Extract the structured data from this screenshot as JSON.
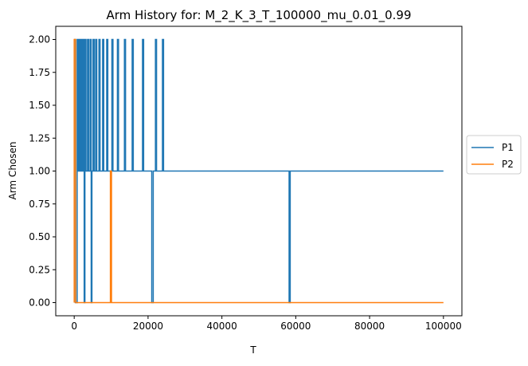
{
  "chart_data": {
    "type": "line",
    "title": "Arm History for: M_2_K_3_T_100000_mu_0.01_0.99",
    "xlabel": "T",
    "ylabel": "Arm Chosen",
    "xlim": [
      -5000,
      105000
    ],
    "ylim": [
      -0.1,
      2.1
    ],
    "x_ticks": [
      0,
      20000,
      40000,
      60000,
      80000,
      100000
    ],
    "x_tick_labels": [
      "0",
      "20000",
      "40000",
      "60000",
      "80000",
      "100000"
    ],
    "y_ticks": [
      0.0,
      0.25,
      0.5,
      0.75,
      1.0,
      1.25,
      1.5,
      1.75,
      2.0
    ],
    "y_tick_labels": [
      "0.00",
      "0.25",
      "0.50",
      "0.75",
      "1.00",
      "1.25",
      "1.50",
      "1.75",
      "2.00"
    ],
    "grid": false,
    "legend_position": "outside right",
    "series": [
      {
        "name": "P1",
        "color": "#1f77b4",
        "points": [
          [
            0,
            2
          ],
          [
            300,
            2
          ],
          [
            300,
            0
          ],
          [
            800,
            0
          ],
          [
            800,
            2
          ],
          [
            1000,
            2
          ],
          [
            1000,
            1
          ],
          [
            1200,
            1
          ],
          [
            1200,
            2
          ],
          [
            1500,
            2
          ],
          [
            1500,
            1
          ],
          [
            1800,
            1
          ],
          [
            1800,
            2
          ],
          [
            2100,
            2
          ],
          [
            2100,
            1
          ],
          [
            2400,
            1
          ],
          [
            2400,
            2
          ],
          [
            2700,
            2
          ],
          [
            2700,
            0
          ],
          [
            2900,
            0
          ],
          [
            2900,
            2
          ],
          [
            3200,
            2
          ],
          [
            3200,
            1
          ],
          [
            3600,
            1
          ],
          [
            3600,
            2
          ],
          [
            3900,
            2
          ],
          [
            3900,
            1
          ],
          [
            4300,
            1
          ],
          [
            4300,
            2
          ],
          [
            4600,
            2
          ],
          [
            4600,
            0
          ],
          [
            4800,
            0
          ],
          [
            4800,
            1
          ],
          [
            5100,
            1
          ],
          [
            5100,
            2
          ],
          [
            5400,
            2
          ],
          [
            5400,
            1
          ],
          [
            5800,
            1
          ],
          [
            5800,
            2
          ],
          [
            6100,
            2
          ],
          [
            6100,
            1
          ],
          [
            6700,
            1
          ],
          [
            6700,
            2
          ],
          [
            7000,
            2
          ],
          [
            7000,
            1
          ],
          [
            7700,
            1
          ],
          [
            7700,
            2
          ],
          [
            8000,
            2
          ],
          [
            8000,
            1
          ],
          [
            8800,
            1
          ],
          [
            8800,
            2
          ],
          [
            9100,
            2
          ],
          [
            9100,
            1
          ],
          [
            10200,
            1
          ],
          [
            10200,
            2
          ],
          [
            10500,
            2
          ],
          [
            10500,
            1
          ],
          [
            11700,
            1
          ],
          [
            11700,
            2
          ],
          [
            12000,
            2
          ],
          [
            12000,
            1
          ],
          [
            13600,
            1
          ],
          [
            13600,
            2
          ],
          [
            13900,
            2
          ],
          [
            13900,
            1
          ],
          [
            15700,
            1
          ],
          [
            15700,
            2
          ],
          [
            16000,
            2
          ],
          [
            16000,
            1
          ],
          [
            18500,
            1
          ],
          [
            18500,
            2
          ],
          [
            18800,
            2
          ],
          [
            18800,
            1
          ],
          [
            21000,
            1
          ],
          [
            21000,
            0
          ],
          [
            21400,
            0
          ],
          [
            21400,
            1
          ],
          [
            22000,
            1
          ],
          [
            22000,
            2
          ],
          [
            22300,
            2
          ],
          [
            22300,
            1
          ],
          [
            23900,
            1
          ],
          [
            23900,
            2
          ],
          [
            24200,
            2
          ],
          [
            24200,
            1
          ],
          [
            58200,
            1
          ],
          [
            58200,
            0
          ],
          [
            58500,
            0
          ],
          [
            58500,
            1
          ],
          [
            100000,
            1
          ]
        ]
      },
      {
        "name": "P2",
        "color": "#ff7f0e",
        "points": [
          [
            0,
            0
          ],
          [
            0,
            2
          ],
          [
            400,
            2
          ],
          [
            400,
            0
          ],
          [
            9800,
            0
          ],
          [
            9800,
            1
          ],
          [
            10100,
            1
          ],
          [
            10100,
            0
          ],
          [
            100000,
            0
          ]
        ]
      }
    ]
  }
}
